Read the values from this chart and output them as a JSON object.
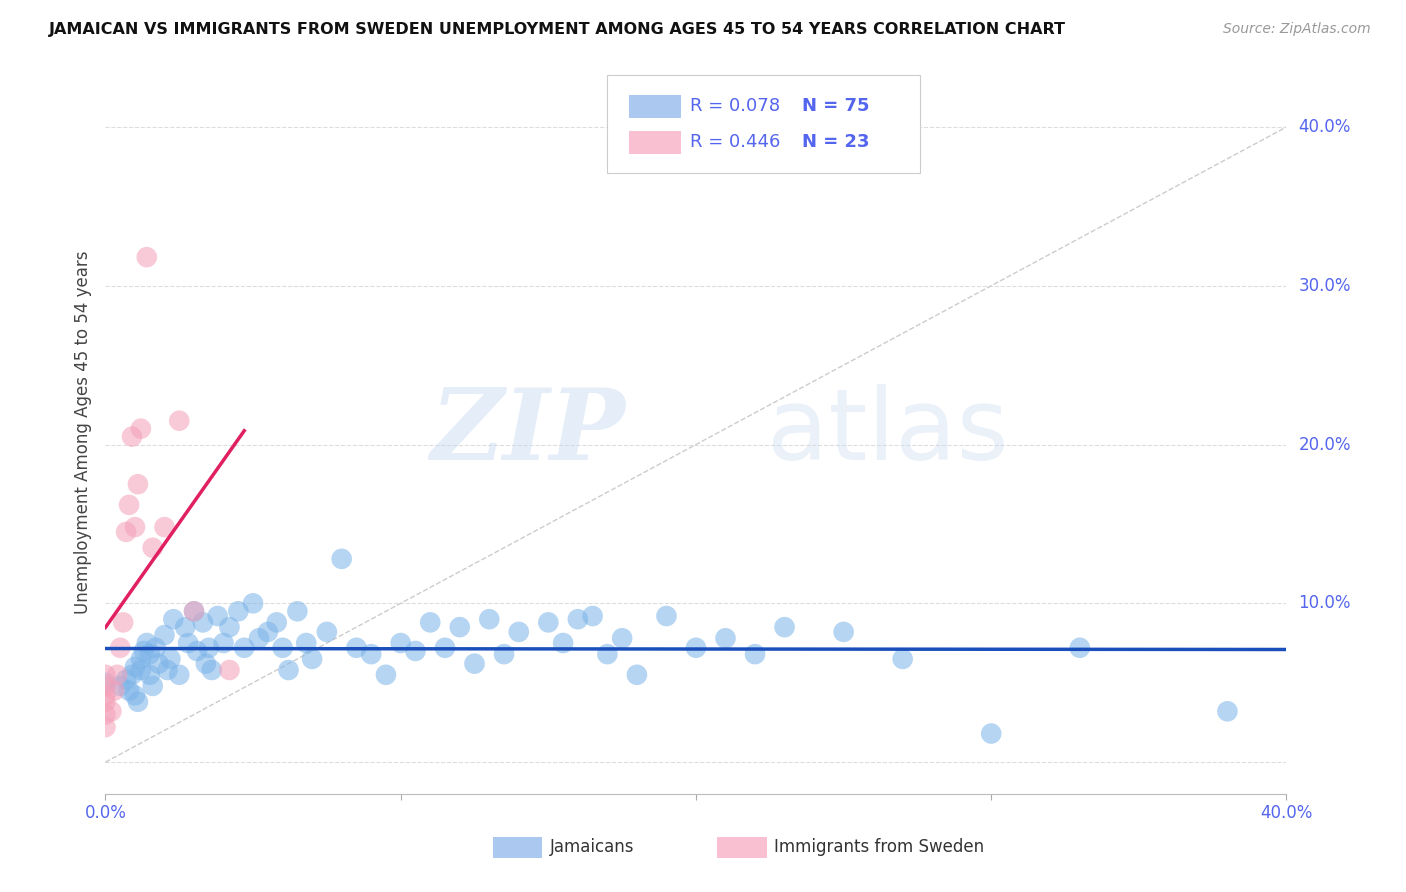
{
  "title": "JAMAICAN VS IMMIGRANTS FROM SWEDEN UNEMPLOYMENT AMONG AGES 45 TO 54 YEARS CORRELATION CHART",
  "source": "Source: ZipAtlas.com",
  "ylabel": "Unemployment Among Ages 45 to 54 years",
  "xmin": 0.0,
  "xmax": 0.4,
  "ymin": -0.02,
  "ymax": 0.435,
  "yticks": [
    0.0,
    0.1,
    0.2,
    0.3,
    0.4
  ],
  "ytick_labels": [
    "",
    "10.0%",
    "20.0%",
    "30.0%",
    "40.0%"
  ],
  "watermark_zip": "ZIP",
  "watermark_atlas": "atlas",
  "legend_r1": "R = 0.078",
  "legend_n1": "N = 75",
  "legend_r2": "R = 0.446",
  "legend_n2": "N = 23",
  "legend_bottom": [
    "Jamaicans",
    "Immigrants from Sweden"
  ],
  "blue_scatter_color": "#7ab3e8",
  "pink_scatter_color": "#f4a0b8",
  "blue_line_color": "#1a4fbb",
  "pink_line_color": "#e02060",
  "blue_legend_color": "#aac8f0",
  "pink_legend_color": "#f8c0d0",
  "ref_line_color": "#cccccc",
  "grid_color": "#dddddd",
  "tick_color": "#5566ee",
  "jamaicans_x": [
    0.0,
    0.005,
    0.007,
    0.008,
    0.009,
    0.01,
    0.01,
    0.011,
    0.012,
    0.012,
    0.013,
    0.014,
    0.015,
    0.015,
    0.016,
    0.017,
    0.018,
    0.02,
    0.021,
    0.022,
    0.023,
    0.025,
    0.027,
    0.028,
    0.03,
    0.031,
    0.033,
    0.034,
    0.035,
    0.036,
    0.038,
    0.04,
    0.042,
    0.045,
    0.047,
    0.05,
    0.052,
    0.055,
    0.058,
    0.06,
    0.062,
    0.065,
    0.068,
    0.07,
    0.075,
    0.08,
    0.085,
    0.09,
    0.095,
    0.1,
    0.105,
    0.11,
    0.115,
    0.12,
    0.125,
    0.13,
    0.135,
    0.14,
    0.15,
    0.155,
    0.16,
    0.165,
    0.17,
    0.175,
    0.18,
    0.19,
    0.2,
    0.21,
    0.22,
    0.23,
    0.25,
    0.27,
    0.3,
    0.33,
    0.38
  ],
  "jamaicans_y": [
    0.05,
    0.048,
    0.052,
    0.045,
    0.055,
    0.06,
    0.042,
    0.038,
    0.065,
    0.058,
    0.07,
    0.075,
    0.068,
    0.055,
    0.048,
    0.072,
    0.062,
    0.08,
    0.058,
    0.065,
    0.09,
    0.055,
    0.085,
    0.075,
    0.095,
    0.07,
    0.088,
    0.062,
    0.072,
    0.058,
    0.092,
    0.075,
    0.085,
    0.095,
    0.072,
    0.1,
    0.078,
    0.082,
    0.088,
    0.072,
    0.058,
    0.095,
    0.075,
    0.065,
    0.082,
    0.128,
    0.072,
    0.068,
    0.055,
    0.075,
    0.07,
    0.088,
    0.072,
    0.085,
    0.062,
    0.09,
    0.068,
    0.082,
    0.088,
    0.075,
    0.09,
    0.092,
    0.068,
    0.078,
    0.055,
    0.092,
    0.072,
    0.078,
    0.068,
    0.085,
    0.082,
    0.065,
    0.018,
    0.072,
    0.032
  ],
  "sweden_x": [
    0.0,
    0.0,
    0.0,
    0.0,
    0.0,
    0.0,
    0.002,
    0.003,
    0.004,
    0.005,
    0.006,
    0.007,
    0.008,
    0.009,
    0.01,
    0.011,
    0.012,
    0.014,
    0.016,
    0.02,
    0.025,
    0.03,
    0.042
  ],
  "sweden_y": [
    0.03,
    0.038,
    0.042,
    0.048,
    0.055,
    0.022,
    0.032,
    0.045,
    0.055,
    0.072,
    0.088,
    0.145,
    0.162,
    0.205,
    0.148,
    0.175,
    0.21,
    0.318,
    0.135,
    0.148,
    0.215,
    0.095,
    0.058
  ]
}
